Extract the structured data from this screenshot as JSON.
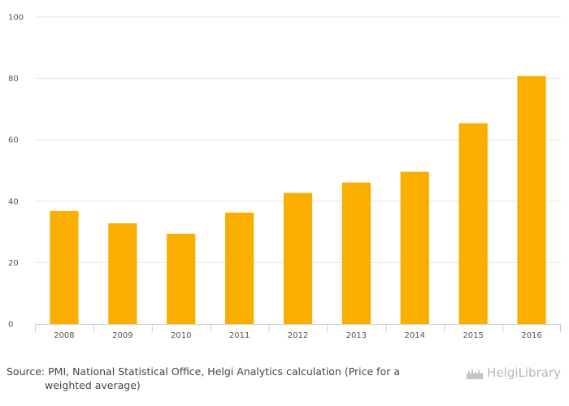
{
  "chart_data": {
    "type": "bar",
    "categories": [
      "2008",
      "2009",
      "2010",
      "2011",
      "2012",
      "2013",
      "2014",
      "2015",
      "2016"
    ],
    "values": [
      36.8,
      32.8,
      29.4,
      36.3,
      42.7,
      46.1,
      49.6,
      65.4,
      80.8
    ],
    "ylim": [
      0,
      100
    ],
    "yticks": [
      0,
      20,
      40,
      60,
      80,
      100
    ],
    "grid": true,
    "bar_color": "#f9ae00",
    "grid_color": "#e6e6e6",
    "title": "",
    "xlabel": "",
    "ylabel": ""
  },
  "footer": {
    "source_line1": "Source: PMI, National Statistical Office, Helgi Analytics calculation (Price for a",
    "source_line2": "weighted average)",
    "logo_text": "HelgiLibrary",
    "logo_icon": "helgi-skyline-icon"
  }
}
